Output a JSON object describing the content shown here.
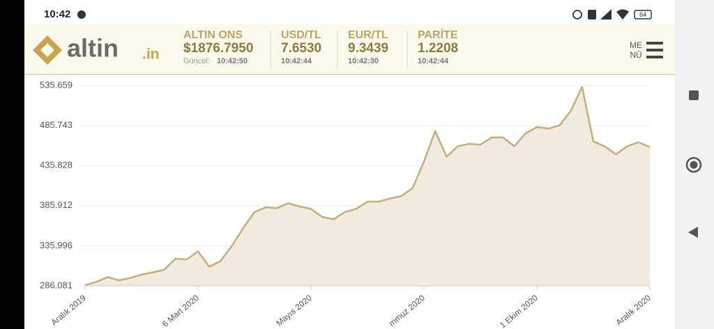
{
  "status_bar": {
    "time": "10:42",
    "battery": "64"
  },
  "header": {
    "logo_text": "altin",
    "logo_suffix": ".in",
    "tickers": [
      {
        "label": "ALTIN ONS",
        "value": "$1876.7950",
        "time_label": "Güncel:",
        "time": "10:42:50"
      },
      {
        "label": "USD/TL",
        "value": "7.6530",
        "time": "10:42:44"
      },
      {
        "label": "EUR/TL",
        "value": "9.3439",
        "time": "10:42:30"
      },
      {
        "label": "PARİTE",
        "value": "1.2208",
        "time": "10:42:44"
      }
    ],
    "menu": [
      "ME",
      "NÜ"
    ]
  },
  "chart_data": {
    "type": "area",
    "color": "#c4ad78",
    "fill": "#f1ebdf",
    "categories": [
      "Aralık 2019",
      null,
      null,
      null,
      null,
      null,
      null,
      null,
      null,
      null,
      "6 Mart 2020",
      null,
      null,
      null,
      null,
      null,
      null,
      null,
      null,
      null,
      "Mayıs 2020",
      null,
      null,
      null,
      null,
      null,
      null,
      null,
      null,
      null,
      "mmuz 2020",
      null,
      null,
      null,
      null,
      null,
      null,
      null,
      null,
      null,
      "1 Ekim 2020",
      null,
      null,
      null,
      null,
      null,
      null,
      null,
      null,
      null,
      "Aralık 2020"
    ],
    "values": [
      287,
      291,
      297,
      293,
      296,
      300,
      303,
      306,
      320,
      319,
      329,
      310,
      317,
      336,
      358,
      378,
      384,
      383,
      389,
      385,
      382,
      372,
      369,
      378,
      382,
      391,
      391,
      395,
      398,
      408,
      441,
      479,
      447,
      460,
      463,
      462,
      471,
      471,
      460,
      476,
      484,
      482,
      486,
      504,
      534,
      466,
      460,
      450,
      460,
      465,
      459
    ],
    "ylim": [
      286.081,
      535.659
    ],
    "yticks": [
      286.081,
      335.996,
      385.912,
      435.828,
      485.743,
      535.659
    ],
    "grid": true
  }
}
